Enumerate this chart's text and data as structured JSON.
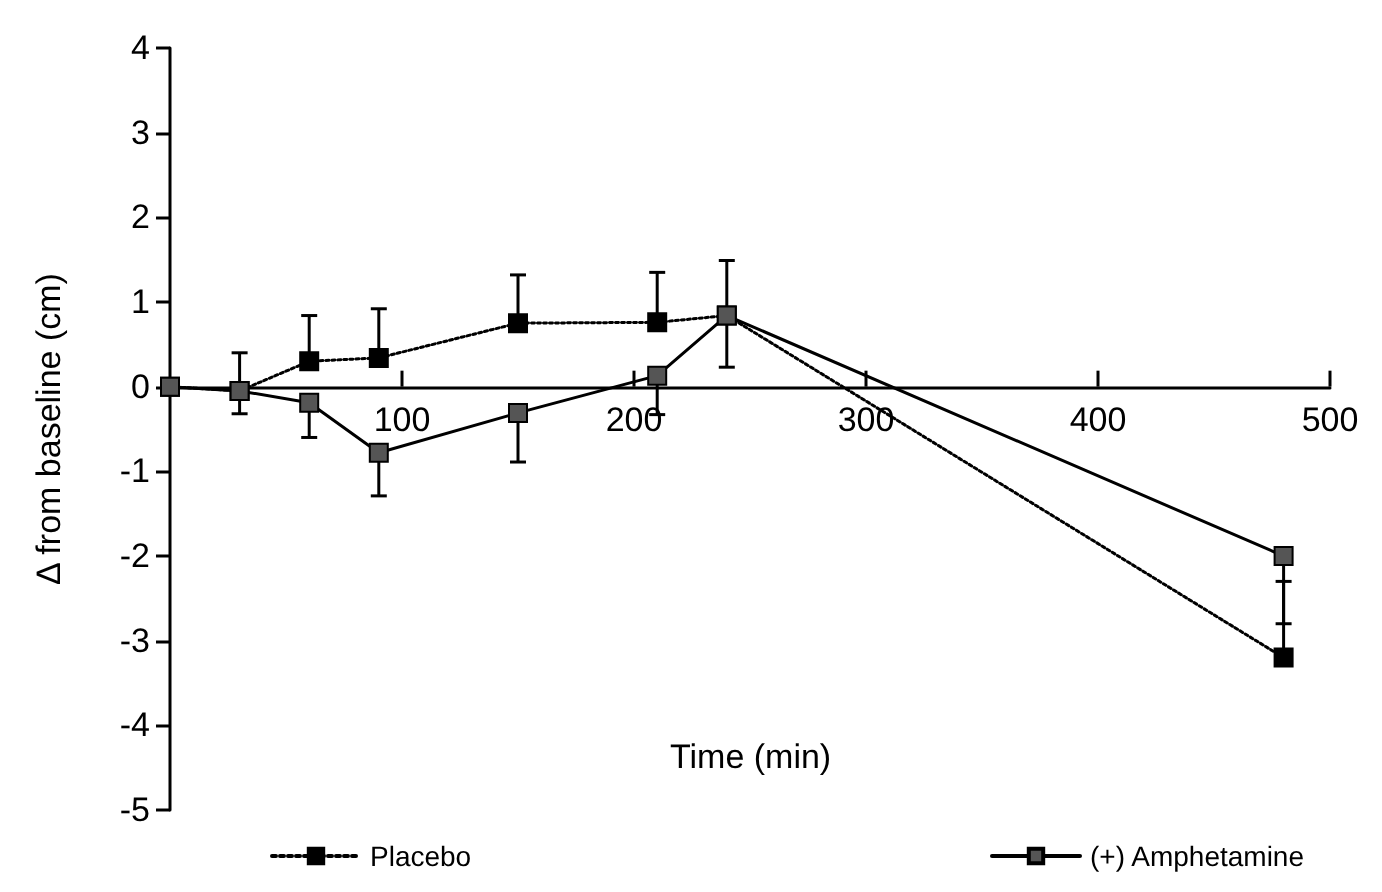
{
  "chart_data": {
    "type": "line",
    "annotations": [
      "Time (min)"
    ],
    "ylabel": "Δ from baseline (cm)",
    "x": [
      0,
      30,
      60,
      90,
      150,
      210,
      240,
      480
    ],
    "xlim": [
      0,
      500
    ],
    "xticks": [
      100,
      200,
      300,
      400,
      500
    ],
    "ylim": [
      -5,
      4
    ],
    "yticks": [
      -5,
      -4,
      -3,
      -2,
      -1,
      0,
      1,
      2,
      3,
      4
    ],
    "grid": false,
    "legend": "bottom",
    "marker": "square",
    "series": [
      {
        "name": "Placebo",
        "color": "#000000",
        "line_style": "dotted",
        "values": [
          0,
          -0.05,
          0.3,
          0.34,
          0.75,
          0.76,
          0.84,
          -3.2
        ],
        "errors": [
          null,
          [
            -0.32,
            0.4
          ],
          [
            0.3,
            0.84
          ],
          [
            0.34,
            0.92
          ],
          [
            0.75,
            1.32
          ],
          [
            0.76,
            1.35
          ],
          [
            0.84,
            1.49
          ],
          [
            -3.2,
            -2.3
          ]
        ]
      },
      {
        "name": "(+) Amphetamine",
        "color": "#555555",
        "line_style": "solid",
        "values": [
          0,
          -0.05,
          -0.19,
          -0.78,
          -0.31,
          0.13,
          0.84,
          -2.0
        ],
        "errors": [
          null,
          null,
          [
            -0.6,
            -0.19
          ],
          [
            -1.29,
            -0.78
          ],
          [
            -0.89,
            -0.31
          ],
          [
            -0.33,
            0.13
          ],
          [
            0.23,
            0.84
          ],
          [
            -2.8,
            -2.0
          ]
        ]
      }
    ]
  }
}
